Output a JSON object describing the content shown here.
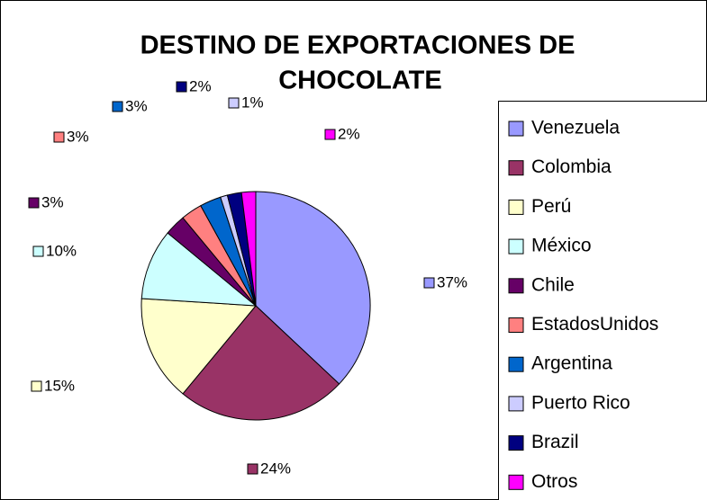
{
  "chart_data": {
    "type": "pie",
    "title": [
      "DESTINO DE EXPORTACIONES DE",
      "CHOCOLATE"
    ],
    "categories": [
      "Venezuela",
      "Colombia",
      "Perú",
      "México",
      "Chile",
      "EstadosUnidos",
      "Argentina",
      "Puerto Rico",
      "Brazil",
      "Otros"
    ],
    "values": [
      37,
      24,
      15,
      10,
      3,
      3,
      3,
      1,
      2,
      2
    ],
    "value_labels": [
      "37%",
      "24%",
      "15%",
      "10%",
      "3%",
      "3%",
      "3%",
      "1%",
      "2%",
      "2%"
    ],
    "colors": [
      "#9999ff",
      "#993366",
      "#ffffcc",
      "#ccffff",
      "#660066",
      "#ff8080",
      "#0066cc",
      "#ccccff",
      "#000080",
      "#ff00ff"
    ],
    "legend": "right"
  }
}
